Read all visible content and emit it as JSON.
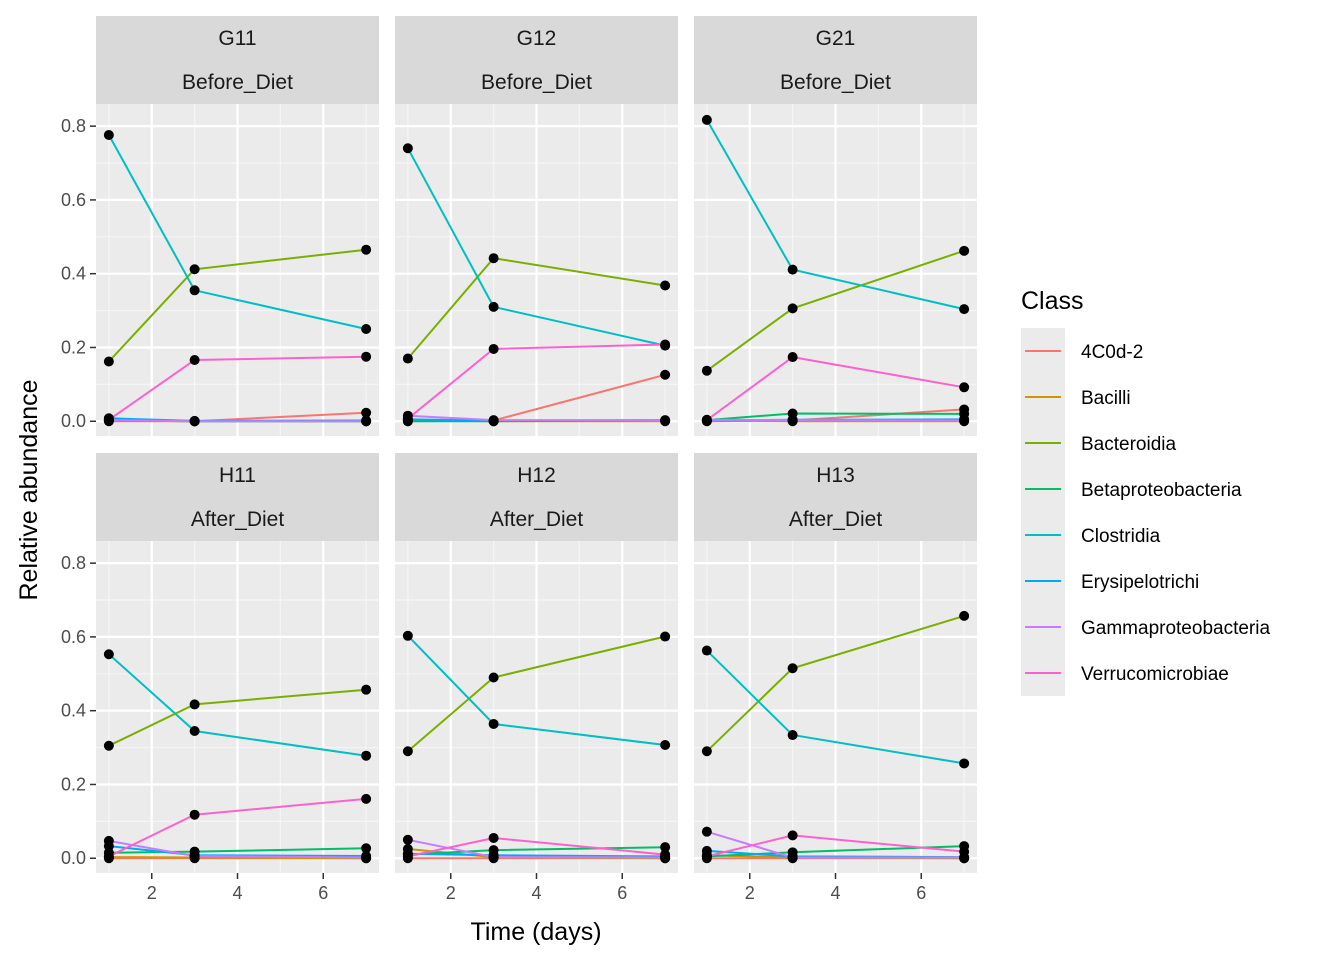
{
  "chart_data": {
    "type": "line",
    "xlabel": "Time (days)",
    "ylabel": "Relative abundance",
    "x": [
      1,
      3,
      7
    ],
    "xlim": [
      0.7,
      7.3
    ],
    "ylim": [
      -0.04,
      0.86
    ],
    "x_ticks": [
      2,
      4,
      6
    ],
    "y_ticks": [
      0.0,
      0.2,
      0.4,
      0.6,
      0.8
    ],
    "y_tick_labels": [
      "0.0",
      "0.2",
      "0.4",
      "0.6",
      "0.8"
    ],
    "x_tick_labels": [
      "2",
      "4",
      "6"
    ],
    "grid": true,
    "legend": {
      "title": "Class",
      "position": "right",
      "entries": [
        {
          "name": "4C0d-2",
          "color": "#F8766D"
        },
        {
          "name": "Bacilli",
          "color": "#CD9600"
        },
        {
          "name": "Bacteroidia",
          "color": "#7CAE00"
        },
        {
          "name": "Betaproteobacteria",
          "color": "#00BE67"
        },
        {
          "name": "Clostridia",
          "color": "#00BFC4"
        },
        {
          "name": "Erysipelotrichi",
          "color": "#00A9FF"
        },
        {
          "name": "Gammaproteobacteria",
          "color": "#C77CFF"
        },
        {
          "name": "Verrucomicrobiae",
          "color": "#FF61CC"
        }
      ]
    },
    "panels": [
      {
        "subject": "G11",
        "phase": "Before_Diet",
        "series": [
          {
            "name": "4C0d-2",
            "values": [
              0.0,
              0.0,
              0.023
            ]
          },
          {
            "name": "Bacilli",
            "values": [
              0.002,
              0.0,
              0.0
            ]
          },
          {
            "name": "Bacteroidia",
            "values": [
              0.162,
              0.412,
              0.465
            ]
          },
          {
            "name": "Betaproteobacteria",
            "values": [
              0.002,
              0.0,
              0.0
            ]
          },
          {
            "name": "Clostridia",
            "values": [
              0.776,
              0.355,
              0.25
            ]
          },
          {
            "name": "Erysipelotrichi",
            "values": [
              0.008,
              0.001,
              0.002
            ]
          },
          {
            "name": "Gammaproteobacteria",
            "values": [
              0.003,
              0.0,
              0.0
            ]
          },
          {
            "name": "Verrucomicrobiae",
            "values": [
              0.004,
              0.166,
              0.175
            ]
          }
        ]
      },
      {
        "subject": "G12",
        "phase": "Before_Diet",
        "series": [
          {
            "name": "4C0d-2",
            "values": [
              0.0,
              0.002,
              0.126
            ]
          },
          {
            "name": "Bacilli",
            "values": [
              0.003,
              0.0,
              0.0
            ]
          },
          {
            "name": "Bacteroidia",
            "values": [
              0.17,
              0.442,
              0.368
            ]
          },
          {
            "name": "Betaproteobacteria",
            "values": [
              0.0,
              0.0,
              0.002
            ]
          },
          {
            "name": "Clostridia",
            "values": [
              0.74,
              0.31,
              0.205
            ]
          },
          {
            "name": "Erysipelotrichi",
            "values": [
              0.005,
              0.002,
              0.003
            ]
          },
          {
            "name": "Gammaproteobacteria",
            "values": [
              0.015,
              0.003,
              0.002
            ]
          },
          {
            "name": "Verrucomicrobiae",
            "values": [
              0.007,
              0.196,
              0.208
            ]
          }
        ]
      },
      {
        "subject": "G21",
        "phase": "Before_Diet",
        "series": [
          {
            "name": "4C0d-2",
            "values": [
              0.0,
              0.002,
              0.032
            ]
          },
          {
            "name": "Bacilli",
            "values": [
              0.002,
              0.0,
              0.0
            ]
          },
          {
            "name": "Bacteroidia",
            "values": [
              0.137,
              0.306,
              0.462
            ]
          },
          {
            "name": "Betaproteobacteria",
            "values": [
              0.003,
              0.021,
              0.02
            ]
          },
          {
            "name": "Clostridia",
            "values": [
              0.817,
              0.411,
              0.304
            ]
          },
          {
            "name": "Erysipelotrichi",
            "values": [
              0.002,
              0.004,
              0.005
            ]
          },
          {
            "name": "Gammaproteobacteria",
            "values": [
              0.004,
              0.003,
              0.002
            ]
          },
          {
            "name": "Verrucomicrobiae",
            "values": [
              0.003,
              0.174,
              0.092
            ]
          }
        ]
      },
      {
        "subject": "H11",
        "phase": "After_Diet",
        "series": [
          {
            "name": "4C0d-2",
            "values": [
              0.0,
              0.0,
              0.0
            ]
          },
          {
            "name": "Bacilli",
            "values": [
              0.003,
              0.002,
              0.0
            ]
          },
          {
            "name": "Bacteroidia",
            "values": [
              0.305,
              0.417,
              0.457
            ]
          },
          {
            "name": "Betaproteobacteria",
            "values": [
              0.015,
              0.018,
              0.027
            ]
          },
          {
            "name": "Clostridia",
            "values": [
              0.553,
              0.345,
              0.278
            ]
          },
          {
            "name": "Erysipelotrichi",
            "values": [
              0.033,
              0.008,
              0.006
            ]
          },
          {
            "name": "Gammaproteobacteria",
            "values": [
              0.047,
              0.006,
              0.002
            ]
          },
          {
            "name": "Verrucomicrobiae",
            "values": [
              0.005,
              0.118,
              0.161
            ]
          }
        ]
      },
      {
        "subject": "H12",
        "phase": "After_Diet",
        "series": [
          {
            "name": "4C0d-2",
            "values": [
              0.0,
              0.0,
              0.0
            ]
          },
          {
            "name": "Bacilli",
            "values": [
              0.025,
              0.003,
              0.0
            ]
          },
          {
            "name": "Bacteroidia",
            "values": [
              0.29,
              0.49,
              0.601
            ]
          },
          {
            "name": "Betaproteobacteria",
            "values": [
              0.01,
              0.022,
              0.03
            ]
          },
          {
            "name": "Clostridia",
            "values": [
              0.603,
              0.364,
              0.307
            ]
          },
          {
            "name": "Erysipelotrichi",
            "values": [
              0.012,
              0.008,
              0.005
            ]
          },
          {
            "name": "Gammaproteobacteria",
            "values": [
              0.05,
              0.003,
              0.002
            ]
          },
          {
            "name": "Verrucomicrobiae",
            "values": [
              0.005,
              0.055,
              0.01
            ]
          }
        ]
      },
      {
        "subject": "H13",
        "phase": "After_Diet",
        "series": [
          {
            "name": "4C0d-2",
            "values": [
              0.0,
              0.0,
              0.0
            ]
          },
          {
            "name": "Bacilli",
            "values": [
              0.008,
              0.002,
              0.0
            ]
          },
          {
            "name": "Bacteroidia",
            "values": [
              0.29,
              0.515,
              0.657
            ]
          },
          {
            "name": "Betaproteobacteria",
            "values": [
              0.005,
              0.016,
              0.033
            ]
          },
          {
            "name": "Clostridia",
            "values": [
              0.563,
              0.334,
              0.257
            ]
          },
          {
            "name": "Erysipelotrichi",
            "values": [
              0.02,
              0.005,
              0.003
            ]
          },
          {
            "name": "Gammaproteobacteria",
            "values": [
              0.072,
              0.002,
              0.002
            ]
          },
          {
            "name": "Verrucomicrobiae",
            "values": [
              0.005,
              0.062,
              0.018
            ]
          }
        ]
      }
    ]
  }
}
